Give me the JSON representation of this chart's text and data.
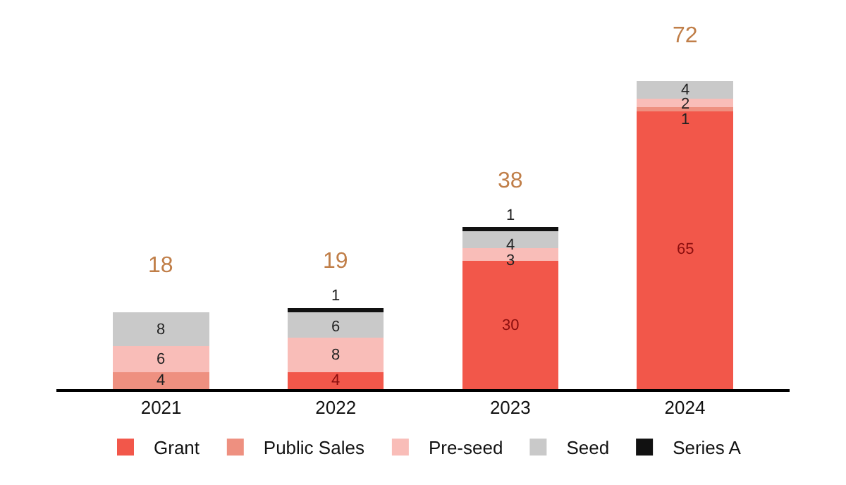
{
  "chart_data": {
    "type": "bar",
    "stacked": true,
    "categories": [
      "2021",
      "2022",
      "2023",
      "2024"
    ],
    "series": [
      {
        "name": "Grant",
        "color": "#f2574a",
        "values": [
          null,
          4,
          30,
          65
        ]
      },
      {
        "name": "Public Sales",
        "color": "#ee9080",
        "values": [
          4,
          null,
          null,
          1
        ]
      },
      {
        "name": "Pre-seed",
        "color": "#f9bdb8",
        "values": [
          6,
          8,
          3,
          2
        ]
      },
      {
        "name": "Seed",
        "color": "#c9c9c9",
        "values": [
          8,
          6,
          4,
          4
        ]
      },
      {
        "name": "Series A",
        "color": "#111111",
        "values": [
          null,
          1,
          1,
          null
        ]
      }
    ],
    "data_labels": true,
    "totals": [
      "18",
      "19",
      "38",
      "72"
    ],
    "legend": "bottom",
    "grid": false,
    "tick_labels": "x"
  }
}
